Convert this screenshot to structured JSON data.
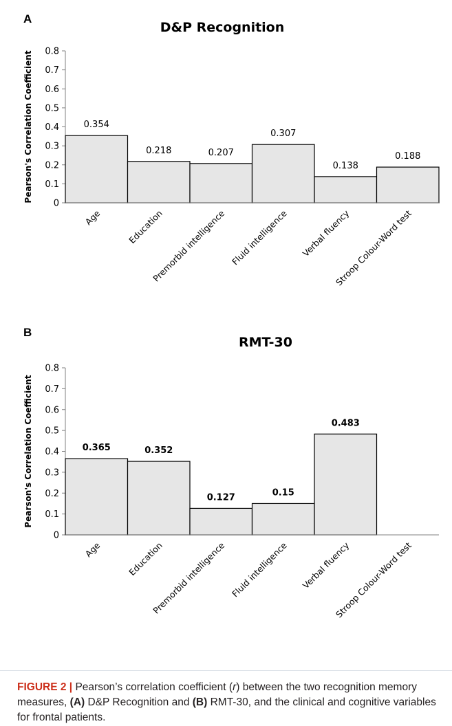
{
  "chart_data": [
    {
      "panel": "A",
      "type": "bar",
      "title": "D&P Recognition",
      "ylabel": "Pearson's Correlation Coefficient",
      "xlabel": "",
      "categories": [
        "Age",
        "Education",
        "Premorbid intelligence",
        "Fluid intelligence",
        "Verbal fluency",
        "Stroop Colour-Word test"
      ],
      "values": [
        0.354,
        0.218,
        0.207,
        0.307,
        0.138,
        0.188
      ],
      "labels": [
        "0.354",
        "0.218",
        "0.207",
        "0.307",
        "0.138",
        "0.188"
      ],
      "ylim": [
        0,
        0.8
      ],
      "yticks": [
        "0",
        "0.1",
        "0.2",
        "0.3",
        "0.4",
        "0.5",
        "0.6",
        "0.7",
        "0.8"
      ],
      "grid": false,
      "legend": "none",
      "bar_color": "#e6e6e6"
    },
    {
      "panel": "B",
      "type": "bar",
      "title": "RMT-30",
      "ylabel": "Pearson's Correlation Coefficient",
      "xlabel": "",
      "categories": [
        "Age",
        "Education",
        "Premorbid intelligence",
        "Fluid intelligence",
        "Verbal fluency",
        "Stroop Colour-Word test"
      ],
      "values": [
        0.365,
        0.352,
        0.127,
        0.15,
        0.483,
        null
      ],
      "labels": [
        "0.365",
        "0.352",
        "0.127",
        "0.15",
        "0.483",
        ""
      ],
      "ylim": [
        0,
        0.8
      ],
      "yticks": [
        "0",
        "0.1",
        "0.2",
        "0.3",
        "0.4",
        "0.5",
        "0.6",
        "0.7",
        "0.8"
      ],
      "grid": false,
      "legend": "none",
      "bar_color": "#e6e6e6"
    }
  ],
  "caption": {
    "figure_label": "FIGURE 2 |",
    "text_1": " Pearson’s correlation coefficient (",
    "r_symbol": "r",
    "text_2": ") between the two recognition memory measures, ",
    "a_label": "(A)",
    "text_3": " D&P Recognition and ",
    "b_label": "(B)",
    "text_4": " RMT-30, and the clinical and cognitive variables for frontal patients."
  }
}
